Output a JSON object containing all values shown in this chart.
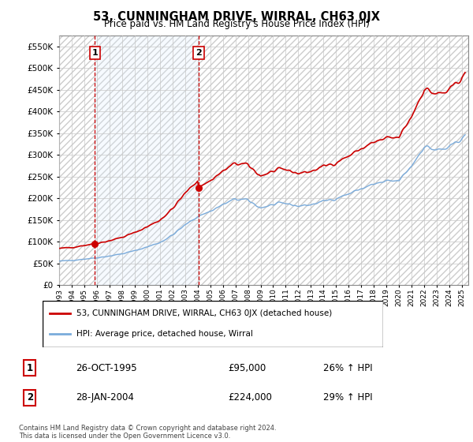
{
  "title": "53, CUNNINGHAM DRIVE, WIRRAL, CH63 0JX",
  "subtitle": "Price paid vs. HM Land Registry's House Price Index (HPI)",
  "ylim": [
    0,
    575000
  ],
  "yticks": [
    0,
    50000,
    100000,
    150000,
    200000,
    250000,
    300000,
    350000,
    400000,
    450000,
    500000,
    550000
  ],
  "sale1_date_num": 1995.83,
  "sale1_price": 95000,
  "sale2_date_num": 2004.08,
  "sale2_price": 224000,
  "red_line_color": "#cc0000",
  "blue_line_color": "#7aabdb",
  "vline_color": "#cc0000",
  "fill_color": "#ddeeff",
  "legend_label_red": "53, CUNNINGHAM DRIVE, WIRRAL, CH63 0JX (detached house)",
  "legend_label_blue": "HPI: Average price, detached house, Wirral",
  "footer": "Contains HM Land Registry data © Crown copyright and database right 2024.\nThis data is licensed under the Open Government Licence v3.0.",
  "box1_label": "1",
  "box2_label": "2",
  "row1_date": "26-OCT-1995",
  "row1_price": "£95,000",
  "row1_pct": "26% ↑ HPI",
  "row2_date": "28-JAN-2004",
  "row2_price": "£224,000",
  "row2_pct": "29% ↑ HPI",
  "xmin": 1993.0,
  "xmax": 2025.5
}
